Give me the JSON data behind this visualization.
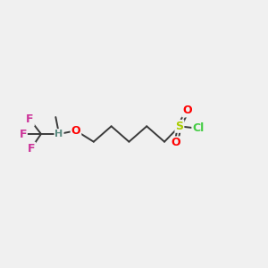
{
  "bg_color": "#f0f0f0",
  "bond_color": "#3a3a3a",
  "F_color": "#cc3399",
  "H_color": "#5a8a80",
  "O_color": "#ff0000",
  "S_color": "#aacc00",
  "Cl_color": "#44cc44",
  "bond_width": 1.4,
  "font_size_atom": 9,
  "font_size_small": 8,
  "figsize": [
    3.0,
    3.0
  ],
  "dpi": 100,
  "xlim": [
    0,
    12
  ],
  "ylim": [
    0,
    12
  ]
}
